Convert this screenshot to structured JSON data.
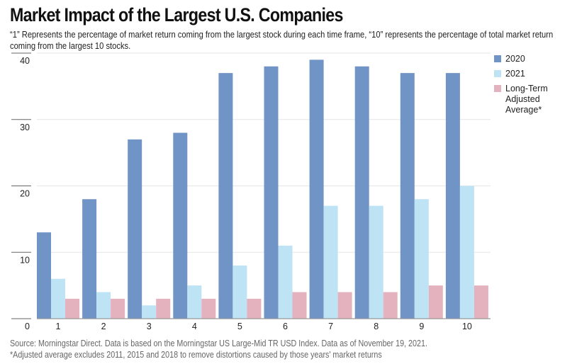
{
  "title": "Market Impact of the Largest U.S. Companies",
  "subtitle": "“1” Represents the percentage of market return coming from the largest stock during each time frame, “10” represents the percentage of total market return coming from the largest 10 stocks.",
  "footer": {
    "source": "Source: Morningstar Direct. Data is based on the Morningstar US Large-Mid TR USD Index. Data as of November 19, 2021.",
    "note": "*Adjusted average excludes 2011, 2015 and 2018 to remove distortions caused by those years' market returns"
  },
  "colors": {
    "2020": "#7094C6",
    "2021": "#BDE3F5",
    "long_term": "#E4B1BE"
  },
  "chart_data": {
    "type": "bar",
    "title": "Market Impact of the Largest U.S. Companies",
    "xlabel": "",
    "ylabel": "",
    "categories": [
      "1",
      "2",
      "3",
      "4",
      "5",
      "6",
      "7",
      "8",
      "9",
      "10"
    ],
    "series": [
      {
        "name": "2020",
        "color": "#7094C6",
        "values": [
          13,
          18,
          27,
          28,
          37,
          38,
          39,
          38,
          37,
          37
        ]
      },
      {
        "name": "2021",
        "color": "#BDE3F5",
        "values": [
          6,
          4,
          2,
          5,
          8,
          11,
          17,
          17,
          18,
          20
        ]
      },
      {
        "name": "Long-Term\nAdjusted Average*",
        "color": "#E4B1BE",
        "values": [
          3,
          3,
          3,
          3,
          3,
          4,
          4,
          4,
          5,
          5
        ]
      }
    ],
    "ylim": [
      0,
      40
    ],
    "yticks": [
      0,
      10,
      20,
      30,
      40
    ],
    "grid": true,
    "legend_position": "right"
  }
}
